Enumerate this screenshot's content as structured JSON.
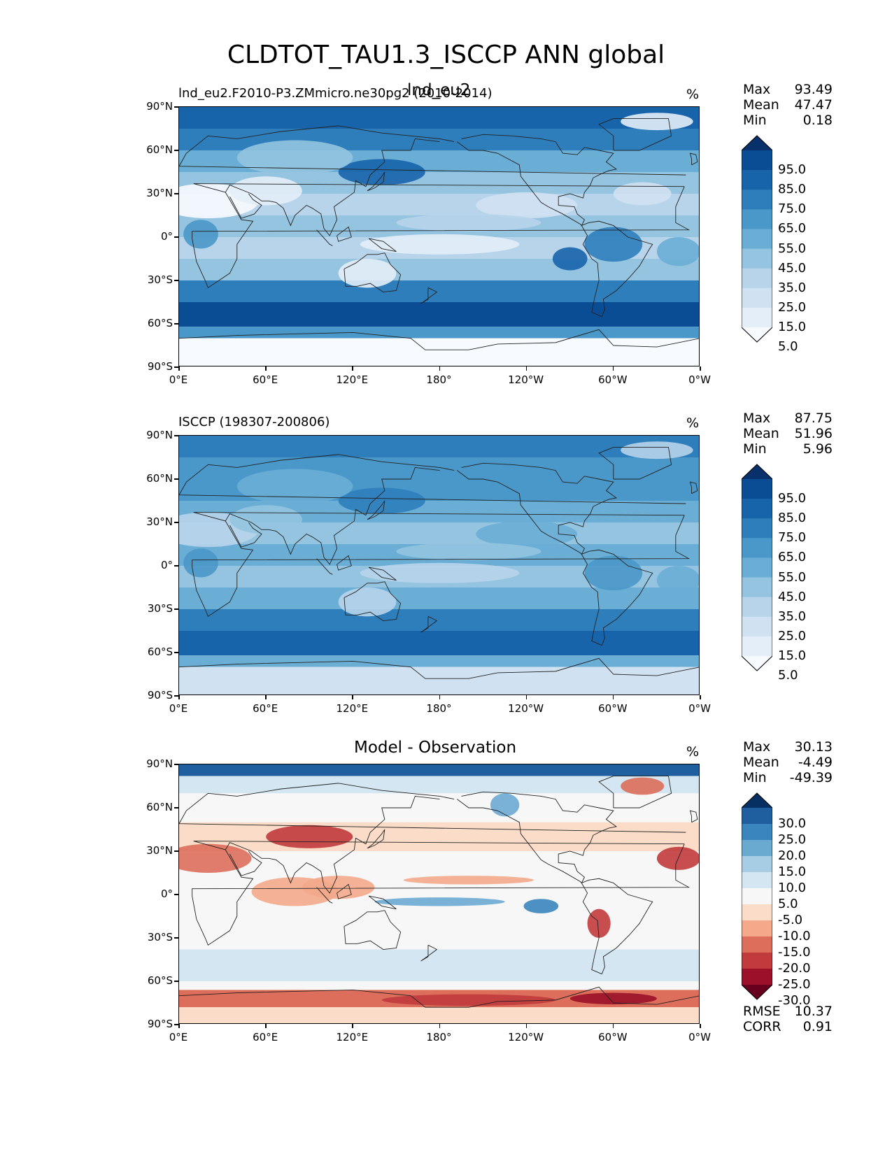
{
  "figure_title": "CLDTOT_TAU1.3_ISCCP ANN global",
  "lat_ticks": [
    "90°N",
    "60°N",
    "30°N",
    "0°",
    "30°S",
    "60°S",
    "90°S"
  ],
  "lon_ticks": [
    "0°E",
    "60°E",
    "120°E",
    "180°",
    "120°W",
    "60°W",
    "0°W"
  ],
  "panels": [
    {
      "left_title": "lnd_eu2.F2010-P3.ZMmicro.ne30pg2 (2010-2014)",
      "center_title": "lnd_eu2",
      "unit": "%",
      "stats": [
        {
          "label": "Max",
          "value": "93.49"
        },
        {
          "label": "Mean",
          "value": "47.47"
        },
        {
          "label": "Min",
          "value": "0.18"
        }
      ],
      "colorbar": {
        "labels": [
          "95.0",
          "85.0",
          "75.0",
          "65.0",
          "55.0",
          "45.0",
          "35.0",
          "25.0",
          "15.0",
          "5.0"
        ],
        "colors": [
          "#08306b",
          "#0b4d94",
          "#1764ab",
          "#2e7ebc",
          "#4a98c9",
          "#6aaed6",
          "#94c4df",
          "#b7d4ea",
          "#d0e1f2",
          "#e3eef8",
          "#f7fbff"
        ]
      }
    },
    {
      "left_title": "ISCCP (198307-200806)",
      "center_title": "",
      "unit": "%",
      "stats": [
        {
          "label": "Max",
          "value": "87.75"
        },
        {
          "label": "Mean",
          "value": "51.96"
        },
        {
          "label": "Min",
          "value": "5.96"
        }
      ],
      "colorbar": {
        "labels": [
          "95.0",
          "85.0",
          "75.0",
          "65.0",
          "55.0",
          "45.0",
          "35.0",
          "25.0",
          "15.0",
          "5.0"
        ],
        "colors": [
          "#08306b",
          "#0b4d94",
          "#1764ab",
          "#2e7ebc",
          "#4a98c9",
          "#6aaed6",
          "#94c4df",
          "#b7d4ea",
          "#d0e1f2",
          "#e3eef8",
          "#f7fbff"
        ]
      }
    },
    {
      "left_title": "",
      "center_title": "Model - Observation",
      "unit": "%",
      "stats": [
        {
          "label": "Max",
          "value": "30.13"
        },
        {
          "label": "Mean",
          "value": "-4.49"
        },
        {
          "label": "Min",
          "value": "-49.39"
        }
      ],
      "extra_stats": [
        {
          "label": "RMSE",
          "value": "10.37"
        },
        {
          "label": "CORR",
          "value": "0.91"
        }
      ],
      "colorbar": {
        "labels": [
          "30.0",
          "25.0",
          "20.0",
          "15.0",
          "10.0",
          "5.0",
          "-5.0",
          "-10.0",
          "-15.0",
          "-20.0",
          "-25.0",
          "-30.0"
        ],
        "colors": [
          "#053061",
          "#1f5fa0",
          "#3a85be",
          "#6aaad1",
          "#a6cde3",
          "#d4e6f1",
          "#f7f7f7",
          "#fbdcc8",
          "#f3a98a",
          "#dd6e5b",
          "#c13a3c",
          "#9a1129",
          "#67001f"
        ]
      }
    }
  ]
}
